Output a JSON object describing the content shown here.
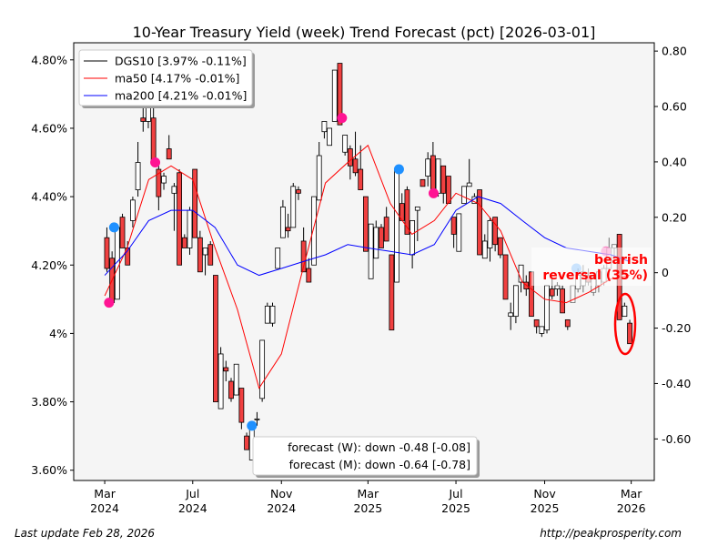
{
  "chart_data": {
    "type": "candlestick",
    "title": "10-Year Treasury Yield (week) Trend Forecast (pct) [2026-03-01]",
    "ylim": [
      3.57,
      4.85
    ],
    "y_right_lim": [
      -0.75,
      0.83
    ],
    "grid": false,
    "legend_placement": "top-left",
    "left_ticks": [
      "4.80%",
      "4.60%",
      "4.40%",
      "4.20%",
      "4%",
      "3.80%",
      "3.60%"
    ],
    "left_tick_values": [
      4.8,
      4.6,
      4.4,
      4.2,
      4.0,
      3.8,
      3.6
    ],
    "right_ticks": [
      "0.80",
      "0.60",
      "0.40",
      "0.20",
      "0",
      "-0.20",
      "-0.40",
      "-0.60"
    ],
    "right_tick_values": [
      0.8,
      0.6,
      0.4,
      0.2,
      0,
      -0.2,
      -0.4,
      -0.6
    ],
    "x_ticks": [
      {
        "date": "2024-03-01",
        "line1": "Mar",
        "line2": "2024"
      },
      {
        "date": "2024-07-01",
        "line1": "Jul",
        "line2": "2024"
      },
      {
        "date": "2024-11-01",
        "line1": "Nov",
        "line2": "2024"
      },
      {
        "date": "2025-03-01",
        "line1": "Mar",
        "line2": "2025"
      },
      {
        "date": "2025-07-01",
        "line1": "Jul",
        "line2": "2025"
      },
      {
        "date": "2025-11-01",
        "line1": "Nov",
        "line2": "2025"
      },
      {
        "date": "2026-03-01",
        "line1": "Mar",
        "line2": "2026"
      }
    ],
    "x_range": [
      "2024-01-18",
      "2026-04-02"
    ],
    "candle_first_date": "2024-03-01",
    "candle_last_date": "2026-02-27",
    "candles_ohlc": [
      [
        4.28,
        4.31,
        4.18,
        4.19
      ],
      [
        4.22,
        4.24,
        4.09,
        4.09
      ],
      [
        4.1,
        4.32,
        4.1,
        4.31
      ],
      [
        4.34,
        4.35,
        4.25,
        4.25
      ],
      [
        4.25,
        4.27,
        4.2,
        4.2
      ],
      [
        4.33,
        4.4,
        4.31,
        4.39
      ],
      [
        4.42,
        4.56,
        4.4,
        4.5
      ],
      [
        4.63,
        4.7,
        4.59,
        4.62
      ],
      [
        4.62,
        4.7,
        4.6,
        4.67
      ],
      [
        4.63,
        4.66,
        4.5,
        4.5
      ],
      [
        4.48,
        4.49,
        4.36,
        4.4
      ],
      [
        4.44,
        4.47,
        4.42,
        4.46
      ],
      [
        4.54,
        4.58,
        4.51,
        4.51
      ],
      [
        4.41,
        4.44,
        4.3,
        4.43
      ],
      [
        4.47,
        4.48,
        4.2,
        4.2
      ],
      [
        4.28,
        4.29,
        4.25,
        4.25
      ],
      [
        4.25,
        4.37,
        4.23,
        4.36
      ],
      [
        4.48,
        4.48,
        4.28,
        4.28
      ],
      [
        4.28,
        4.3,
        4.18,
        4.18
      ],
      [
        4.23,
        4.25,
        4.17,
        4.25
      ],
      [
        4.26,
        4.27,
        4.2,
        4.2
      ],
      [
        4.17,
        4.17,
        3.8,
        3.8
      ],
      [
        3.78,
        3.96,
        3.78,
        3.94
      ],
      [
        3.9,
        3.92,
        3.86,
        3.89
      ],
      [
        3.86,
        3.87,
        3.8,
        3.81
      ],
      [
        3.82,
        3.91,
        3.82,
        3.91
      ],
      [
        3.84,
        3.84,
        3.72,
        3.74
      ],
      [
        3.7,
        3.71,
        3.66,
        3.66
      ],
      [
        3.63,
        3.74,
        3.63,
        3.74
      ],
      [
        3.75,
        3.77,
        3.73,
        3.75
      ],
      [
        3.81,
        3.98,
        3.8,
        3.98
      ],
      [
        4.03,
        4.09,
        4.03,
        4.08
      ],
      [
        4.03,
        4.09,
        4.02,
        4.08
      ],
      [
        4.19,
        4.25,
        4.19,
        4.25
      ],
      [
        4.28,
        4.39,
        4.28,
        4.37
      ],
      [
        4.31,
        4.35,
        4.28,
        4.3
      ],
      [
        4.31,
        4.44,
        4.31,
        4.43
      ],
      [
        4.42,
        4.43,
        4.39,
        4.41
      ],
      [
        4.27,
        4.31,
        4.18,
        4.18
      ],
      [
        4.19,
        4.22,
        4.15,
        4.15
      ],
      [
        4.2,
        4.4,
        4.2,
        4.4
      ],
      [
        4.39,
        4.56,
        4.39,
        4.52
      ],
      [
        4.59,
        4.62,
        4.57,
        4.62
      ],
      [
        4.55,
        4.6,
        4.55,
        4.6
      ],
      [
        4.62,
        4.77,
        4.62,
        4.77
      ],
      [
        4.79,
        4.79,
        4.61,
        4.61
      ],
      [
        4.53,
        4.58,
        4.52,
        4.58
      ],
      [
        4.54,
        4.55,
        4.45,
        4.49
      ],
      [
        4.51,
        4.59,
        4.46,
        4.47
      ],
      [
        4.48,
        4.55,
        4.42,
        4.42
      ],
      [
        4.4,
        4.4,
        4.24,
        4.24
      ],
      [
        4.16,
        4.32,
        4.16,
        4.32
      ],
      [
        4.22,
        4.33,
        4.22,
        4.31
      ],
      [
        4.31,
        4.32,
        4.25,
        4.25
      ],
      [
        4.34,
        4.37,
        4.27,
        4.27
      ],
      [
        4.23,
        4.23,
        4.01,
        4.01
      ],
      [
        4.15,
        4.48,
        4.15,
        4.48
      ],
      [
        4.38,
        4.41,
        4.33,
        4.33
      ],
      [
        4.42,
        4.43,
        4.29,
        4.29
      ],
      [
        4.23,
        4.33,
        4.19,
        4.33
      ],
      [
        4.36,
        4.37,
        4.27,
        4.37
      ],
      [
        4.45,
        4.45,
        4.43,
        4.43
      ],
      [
        4.46,
        4.53,
        4.43,
        4.51
      ],
      [
        4.52,
        4.56,
        4.41,
        4.41
      ],
      [
        4.41,
        4.51,
        4.4,
        4.51
      ],
      [
        4.49,
        4.49,
        4.38,
        4.41
      ],
      [
        4.46,
        4.46,
        4.38,
        4.38
      ],
      [
        4.34,
        4.34,
        4.25,
        4.29
      ],
      [
        4.24,
        4.35,
        4.24,
        4.35
      ],
      [
        4.38,
        4.43,
        4.38,
        4.43
      ],
      [
        4.43,
        4.51,
        4.43,
        4.44
      ],
      [
        4.38,
        4.41,
        4.38,
        4.4
      ],
      [
        4.42,
        4.42,
        4.23,
        4.23
      ],
      [
        4.22,
        4.29,
        4.22,
        4.27
      ],
      [
        4.25,
        4.34,
        4.21,
        4.33
      ],
      [
        4.34,
        4.34,
        4.24,
        4.26
      ],
      [
        4.28,
        4.28,
        4.22,
        4.23
      ],
      [
        4.23,
        4.23,
        4.1,
        4.1
      ],
      [
        4.05,
        4.09,
        4.01,
        4.06
      ],
      [
        4.05,
        4.14,
        4.03,
        4.14
      ],
      [
        4.15,
        4.2,
        4.12,
        4.2
      ],
      [
        4.15,
        4.17,
        4.11,
        4.13
      ],
      [
        4.18,
        4.18,
        4.05,
        4.05
      ],
      [
        4.04,
        4.04,
        4.0,
        4.02
      ],
      [
        4.0,
        4.02,
        3.99,
        4.02
      ],
      [
        4.01,
        4.14,
        4.0,
        4.14
      ],
      [
        4.13,
        4.16,
        4.1,
        4.11
      ],
      [
        4.13,
        4.15,
        4.11,
        4.14
      ],
      [
        4.13,
        4.14,
        4.06,
        4.06
      ],
      [
        4.04,
        4.04,
        4.01,
        4.02
      ],
      [
        4.09,
        4.14,
        4.09,
        4.14
      ],
      [
        4.13,
        4.19,
        4.12,
        4.17
      ],
      [
        4.14,
        4.2,
        4.12,
        4.18
      ],
      [
        4.17,
        4.19,
        4.14,
        4.15
      ],
      [
        4.12,
        4.17,
        4.11,
        4.16
      ],
      [
        4.14,
        4.19,
        4.12,
        4.18
      ],
      [
        4.15,
        4.2,
        4.14,
        4.19
      ],
      [
        4.19,
        4.28,
        4.17,
        4.25
      ],
      [
        4.25,
        4.26,
        4.22,
        4.26
      ],
      [
        4.29,
        4.29,
        4.04,
        4.04
      ],
      [
        4.05,
        4.09,
        4.05,
        4.08
      ],
      [
        4.03,
        4.04,
        3.97,
        3.97
      ]
    ],
    "ma_dates": [
      "2024-03",
      "2024-04",
      "2024-05",
      "2024-06",
      "2024-07",
      "2024-08",
      "2024-09",
      "2024-10",
      "2024-11",
      "2024-12",
      "2025-01",
      "2025-02",
      "2025-03",
      "2025-04",
      "2025-05",
      "2025-06",
      "2025-07",
      "2025-08",
      "2025-09",
      "2025-10",
      "2025-11",
      "2025-12",
      "2026-01",
      "2026-02",
      "2026-02-27"
    ],
    "series": [
      {
        "name": "DGS10 [3.97% -0.11%]",
        "color": "#000000"
      },
      {
        "name": "ma50 [4.17% -0.01%]",
        "color": "#ff0000",
        "values": [
          4.11,
          4.25,
          4.45,
          4.49,
          4.45,
          4.25,
          4.07,
          3.84,
          3.94,
          4.19,
          4.44,
          4.5,
          4.55,
          4.38,
          4.29,
          4.33,
          4.41,
          4.38,
          4.3,
          4.15,
          4.1,
          4.09,
          4.12,
          4.16,
          4.17
        ]
      },
      {
        "name": "ma200 [4.21% -0.01%]",
        "color": "#0000ff",
        "values": [
          4.17,
          4.24,
          4.33,
          4.36,
          4.36,
          4.31,
          4.2,
          4.17,
          4.19,
          4.21,
          4.23,
          4.26,
          4.25,
          4.24,
          4.23,
          4.26,
          4.36,
          4.4,
          4.38,
          4.33,
          4.28,
          4.25,
          4.24,
          4.23,
          4.21
        ]
      }
    ],
    "signals": [
      {
        "type": "sell",
        "date": "2024-03-07",
        "value": 4.09,
        "color": "#ff1493"
      },
      {
        "type": "buy",
        "date": "2024-03-14",
        "value": 4.31,
        "color": "#1e90ff"
      },
      {
        "type": "sell",
        "date": "2024-05-10",
        "value": 4.5,
        "color": "#ff1493"
      },
      {
        "type": "buy",
        "date": "2024-09-21",
        "value": 3.73,
        "color": "#1e90ff"
      },
      {
        "type": "sell",
        "date": "2025-01-24",
        "value": 4.63,
        "color": "#ff1493"
      },
      {
        "type": "buy",
        "date": "2025-04-13",
        "value": 4.48,
        "color": "#1e90ff"
      },
      {
        "type": "sell",
        "date": "2025-05-31",
        "value": 4.41,
        "color": "#ff1493"
      },
      {
        "type": "buy",
        "date": "2025-12-15",
        "value": 4.19,
        "color": "#1e90ff"
      },
      {
        "type": "sell",
        "date": "2026-01-25",
        "value": 4.24,
        "color": "#ff1493"
      }
    ],
    "annotation": {
      "line1": "bearish",
      "line2": "reversal (35%)",
      "color": "#ff0000"
    },
    "forecast_legend": [
      "forecast (W): down -0.48 [-0.08]",
      "forecast (M): down -0.64 [-0.78]"
    ],
    "up_color": "#ffffff",
    "down_color": "#f04040"
  },
  "footer": {
    "left": "Last update Feb 28, 2026",
    "right": "http://peakprosperity.com"
  }
}
